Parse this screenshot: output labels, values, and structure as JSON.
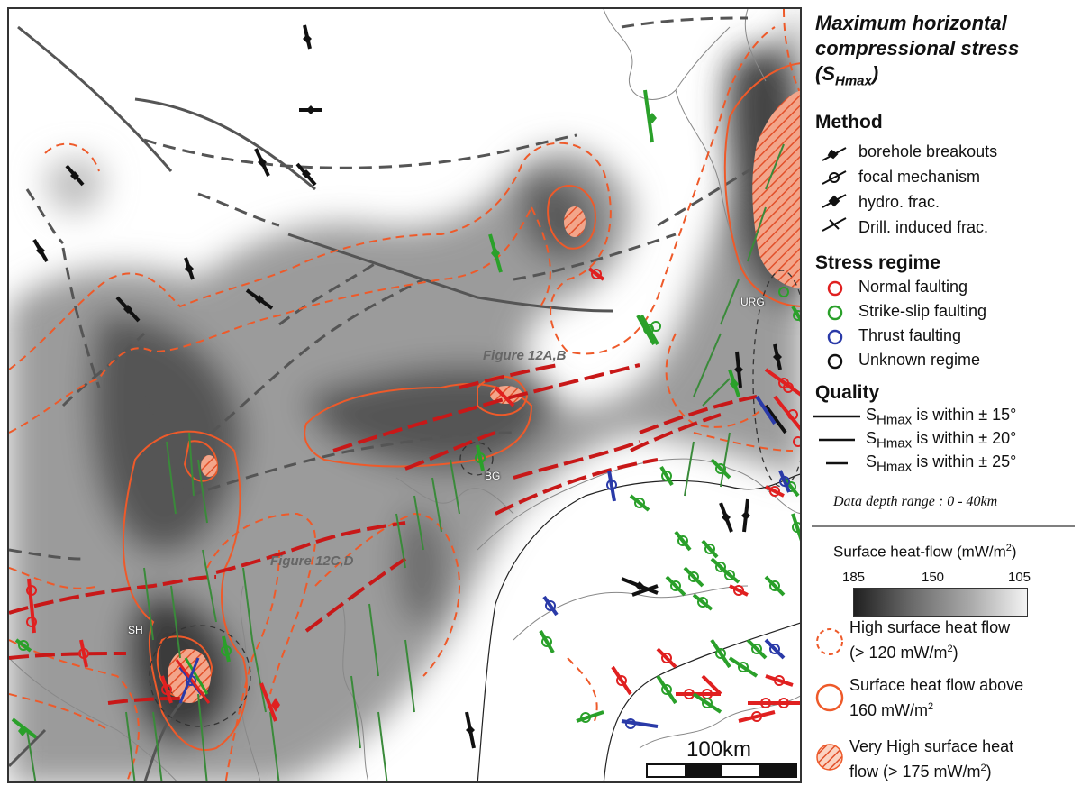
{
  "map": {
    "figure_labels": [
      "Figure 12A,B",
      "Figure 12C,D"
    ],
    "site_labels": [
      "SH",
      "BG",
      "URG"
    ],
    "scale_label": "100km"
  },
  "legend": {
    "title_line1": "Maximum horizontal",
    "title_line2": "compressional stress",
    "title_line3": "(S",
    "title_sub": "Hmax",
    "title_close": ")",
    "method": {
      "heading": "Method",
      "items": [
        "borehole breakouts",
        "focal mechanism",
        "hydro. frac.",
        "Drill. induced frac."
      ]
    },
    "stress_regime": {
      "heading": "Stress regime",
      "items": [
        {
          "label": "Normal faulting",
          "color": "#e02020"
        },
        {
          "label": "Strike-slip faulting",
          "color": "#2aa02a"
        },
        {
          "label": "Thrust faulting",
          "color": "#2a3aa8"
        },
        {
          "label": "Unknown regime",
          "color": "#111111"
        }
      ]
    },
    "quality": {
      "heading": "Quality",
      "items": [
        {
          "prefix": "S",
          "sub": "Hmax",
          "text": " is within  ± 15°"
        },
        {
          "prefix": "S",
          "sub": "Hmax",
          "text": " is within  ± 20°"
        },
        {
          "prefix": "S",
          "sub": "Hmax",
          "text": " is within  ± 25°"
        }
      ]
    },
    "depth_note": "Data depth range : 0 - 40km",
    "heatflow": {
      "heading": "Surface heat-flow (mW/m",
      "heading_sup": "2",
      "heading_close": ")",
      "ticks": [
        "185",
        "150",
        "105"
      ],
      "items": [
        {
          "line1": "High surface heat flow",
          "line2": "(> 120 mW/m",
          "line2_sup": "2",
          "line2_close": ")"
        },
        {
          "line1": "Surface heat flow above",
          "line2": " 160 mW/m",
          "line2_sup": "2",
          "line2_close": ""
        },
        {
          "line1": "Very High surface heat",
          "line2": "flow (> 175 mW/m",
          "line2_sup": "2",
          "line2_close": ")"
        }
      ]
    }
  },
  "colors": {
    "normal": "#e02020",
    "strike_slip": "#2aa02a",
    "thrust": "#2a3aa8",
    "unknown": "#111111",
    "heat_contour": "#ee5a2a",
    "fault_red": "#c81818",
    "fault_grey": "#555555",
    "fault_green": "#3a8a3a"
  }
}
